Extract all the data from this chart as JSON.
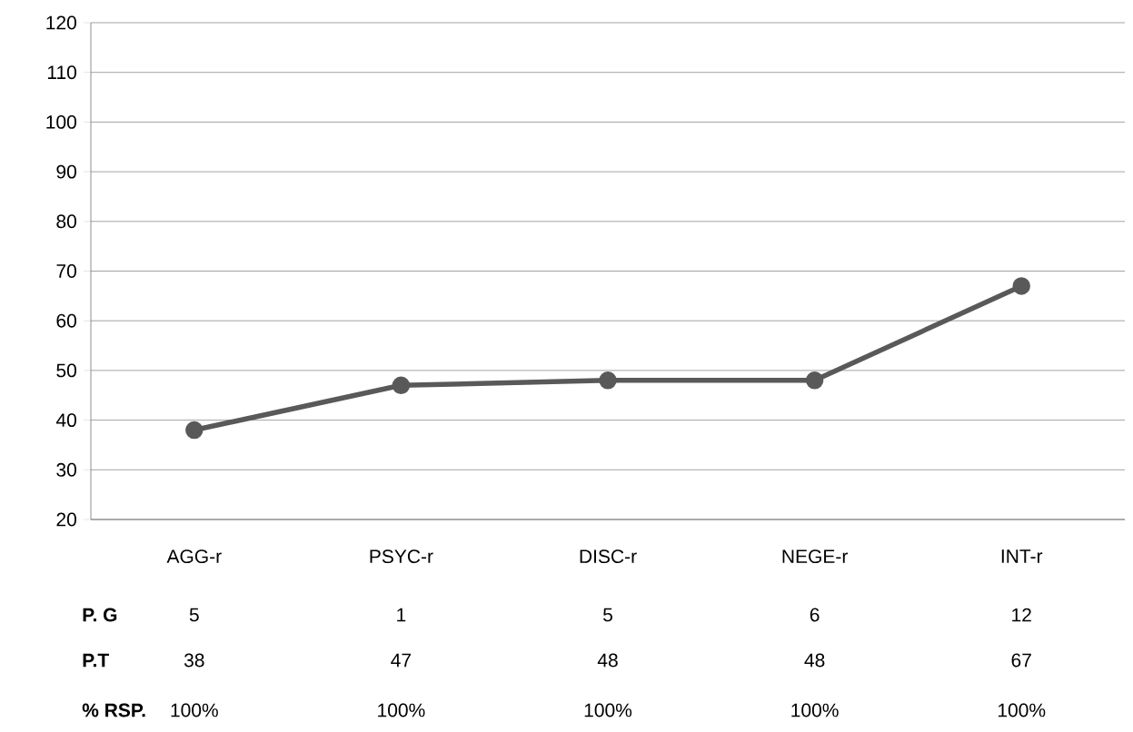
{
  "chart_data": {
    "type": "line",
    "categories": [
      "AGG-r",
      "PSYC-r",
      "DISC-r",
      "NEGE-r",
      "INT-r"
    ],
    "series": [
      {
        "name": "P.T",
        "color": "#595959",
        "values": [
          38,
          47,
          48,
          48,
          67
        ]
      }
    ],
    "ylim": [
      20,
      120
    ],
    "yticks": [
      20,
      30,
      40,
      50,
      60,
      70,
      80,
      90,
      100,
      110,
      120
    ],
    "grid": "y",
    "marker": "circle",
    "line_style": "solid",
    "data_labels": true,
    "annotations": [
      "P. G",
      "5",
      "1",
      "5",
      "6",
      "12",
      "% RSP.",
      "100%",
      "100%",
      "100%",
      "100%",
      "100%"
    ]
  }
}
